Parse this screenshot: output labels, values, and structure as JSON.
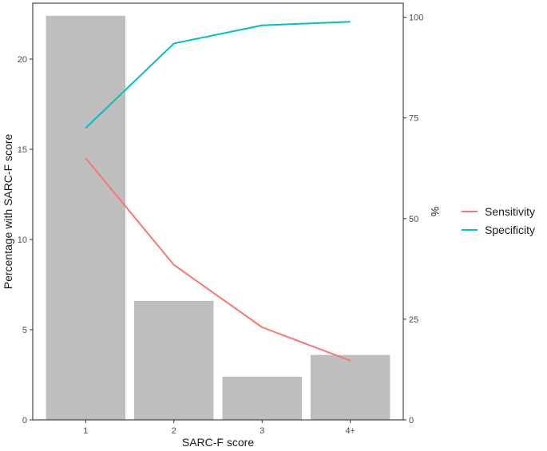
{
  "chart_data": {
    "type": "bar",
    "categories": [
      "1",
      "2",
      "3",
      "4+"
    ],
    "values": [
      22.4,
      6.6,
      2.4,
      3.6
    ],
    "xlabel": "SARC-F score",
    "ylabel": "Percentage with SARC-F score",
    "ylim": [
      0,
      23.1
    ],
    "yticks": [
      0,
      5,
      10,
      15,
      20
    ],
    "bar_color": "#bebebe",
    "secondary_axis": {
      "label": "%",
      "ylim": [
        0,
        103.5
      ],
      "ticks": [
        0,
        25,
        50,
        75,
        100
      ]
    },
    "series": [
      {
        "name": "Sensitivity",
        "color": "#f8766d",
        "values": [
          65,
          38.5,
          23,
          14.7
        ]
      },
      {
        "name": "Specificity",
        "color": "#00bfc4",
        "values": [
          72.5,
          93.5,
          98,
          98.9
        ]
      }
    ],
    "grid": false,
    "legend_position": "right"
  }
}
